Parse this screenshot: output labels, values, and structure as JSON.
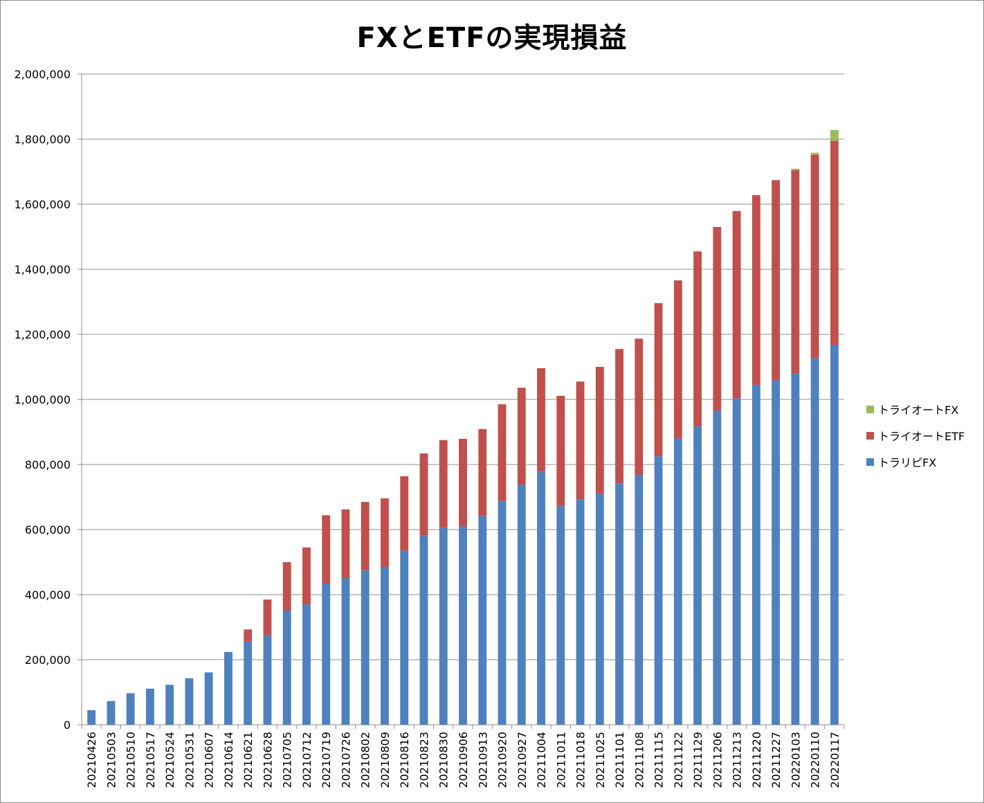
{
  "chart_data": {
    "type": "bar",
    "stacked": true,
    "title": "FXとETFの実現損益",
    "xlabel": "",
    "ylabel": "",
    "ylim": [
      0,
      2000000
    ],
    "y_ticks": [
      0,
      200000,
      400000,
      600000,
      800000,
      1000000,
      1200000,
      1400000,
      1600000,
      1800000,
      2000000
    ],
    "y_tick_labels": [
      "0",
      "200,000",
      "400,000",
      "600,000",
      "800,000",
      "1,000,000",
      "1,200,000",
      "1,400,000",
      "1,600,000",
      "1,800,000",
      "2,000,000"
    ],
    "grid": true,
    "legend_position": "right",
    "categories": [
      "20210426",
      "20210503",
      "20210510",
      "20210517",
      "20210524",
      "20210531",
      "20210607",
      "20210614",
      "20210621",
      "20210628",
      "20210705",
      "20210712",
      "20210719",
      "20210726",
      "20210802",
      "20210809",
      "20210816",
      "20210823",
      "20210830",
      "20210906",
      "20210913",
      "20210920",
      "20210927",
      "20211004",
      "20211011",
      "20211018",
      "20211025",
      "20211101",
      "20211108",
      "20211115",
      "20211122",
      "20211129",
      "20211206",
      "20211213",
      "20211220",
      "20211227",
      "20220103",
      "20220110",
      "20220117"
    ],
    "series": [
      {
        "name": "トラリピFX",
        "color": "#4f81bd",
        "values": [
          45000,
          73000,
          97000,
          111000,
          123000,
          143000,
          161000,
          224000,
          256000,
          275000,
          351000,
          370000,
          433000,
          451000,
          475000,
          484000,
          536000,
          581000,
          605000,
          610000,
          642000,
          688000,
          738000,
          778000,
          673000,
          693000,
          710000,
          742000,
          768000,
          825000,
          880000,
          918000,
          965000,
          1003000,
          1045000,
          1059000,
          1080000,
          1127000,
          1167000
        ]
      },
      {
        "name": "トライオートETF",
        "color": "#c0504d",
        "values": [
          0,
          0,
          0,
          0,
          0,
          0,
          0,
          0,
          37000,
          110000,
          149000,
          175000,
          211000,
          211000,
          210000,
          212000,
          228000,
          253000,
          270000,
          269000,
          267000,
          297000,
          298000,
          318000,
          338000,
          362000,
          390000,
          413000,
          419000,
          471000,
          486000,
          537000,
          565000,
          576000,
          583000,
          615000,
          625000,
          625000,
          628000
        ]
      },
      {
        "name": "トライオートFX",
        "color": "#9bbb59",
        "values": [
          0,
          0,
          0,
          0,
          0,
          0,
          0,
          0,
          0,
          0,
          0,
          0,
          0,
          0,
          0,
          0,
          0,
          0,
          0,
          0,
          0,
          0,
          0,
          0,
          0,
          0,
          0,
          0,
          0,
          0,
          0,
          0,
          0,
          0,
          0,
          0,
          4000,
          6000,
          33000
        ]
      }
    ]
  },
  "legend": [
    {
      "label": "トライオートFX",
      "color": "#9bbb59"
    },
    {
      "label": "トライオートETF",
      "color": "#c0504d"
    },
    {
      "label": "トラリピFX",
      "color": "#4f81bd"
    }
  ]
}
